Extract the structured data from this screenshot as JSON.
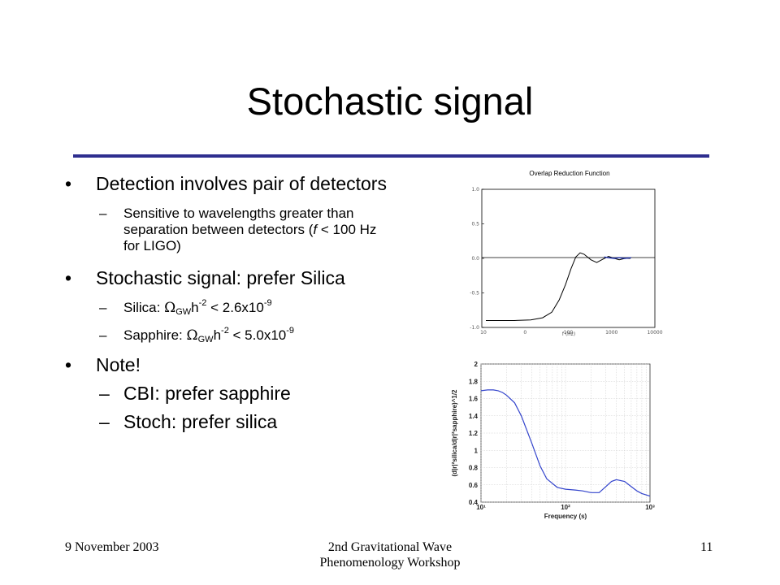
{
  "slide": {
    "title": "Stochastic signal",
    "footer_left": "9 November 2003",
    "footer_center_line1": "2nd Gravitational Wave",
    "footer_center_line2": "Phenomenology Workshop",
    "page_number": "11",
    "bullet_mark": "•",
    "dash_mark": "–"
  },
  "bullets": {
    "b1_text": "Detection involves pair of detectors",
    "b1_sub1_pre": "Sensitive to wavelengths greater than separation between detectors (",
    "b1_sub1_f": "f",
    "b1_sub1_post": " < 100 Hz for LIGO)",
    "b2_text": "Stochastic signal: prefer Silica",
    "b2_sub1_label": "Silica: ",
    "b2_sub1_limit": " < 2.6x10",
    "b2_sub1_exp": "-9",
    "b2_sub2_label": "Sapphire: ",
    "b2_sub2_limit": " < 5.0x10",
    "b2_sub2_exp": "-9",
    "omega": "Ω",
    "gw_sub": "GW",
    "h": "h",
    "h_exp": "-2",
    "b3_text": "Note!",
    "b3_sub1": "CBI: prefer sapphire",
    "b3_sub2": "Stoch: prefer silica"
  },
  "chart_data": [
    {
      "type": "line",
      "title": "Overlap Reduction Function",
      "xlabel": "f (Hz)",
      "ylabel": "",
      "x_scale": "log",
      "x_ticks": [
        "10",
        "0",
        "100",
        "1000",
        "10000"
      ],
      "y_ticks": [
        "1.0",
        "0.5",
        "0.0",
        "-0.5",
        "-1.0"
      ],
      "ylim": [
        -1.0,
        1.0
      ],
      "grid": false,
      "series": [
        {
          "color": "#000000",
          "x": [
            10,
            20,
            30,
            40,
            50,
            60,
            70,
            80,
            90,
            100,
            110,
            130,
            150,
            170,
            200,
            230,
            260,
            300,
            400,
            500
          ],
          "y": [
            -0.9,
            -0.9,
            -0.89,
            -0.86,
            -0.78,
            -0.6,
            -0.38,
            -0.15,
            0.02,
            0.08,
            0.06,
            -0.02,
            -0.06,
            -0.02,
            0.03,
            0.0,
            -0.02,
            0.0,
            0.0,
            0.0
          ]
        },
        {
          "color": "#2233aa",
          "x": [
            180,
            200,
            230,
            260,
            300,
            350,
            400,
            450,
            500
          ],
          "y": [
            0.02,
            0.01,
            0.0,
            0.01,
            0.0,
            0.01,
            0.0,
            0.0,
            0.0
          ]
        }
      ]
    },
    {
      "type": "line",
      "title": "",
      "xlabel": "Frequency (s)",
      "ylabel": "(d|r|²silica/d|r|²sapphire)^1/2",
      "x_scale": "log",
      "xlim": [
        10,
        1000
      ],
      "ylim": [
        0.4,
        2
      ],
      "x_ticks": [
        "10¹",
        "10²",
        "10³"
      ],
      "y_ticks": [
        "2",
        "1.8",
        "1.6",
        "1.4",
        "1.2",
        "1",
        "0.8",
        "0.6",
        "0.4"
      ],
      "grid": true,
      "series": [
        {
          "color": "#3344cc",
          "x": [
            10,
            12,
            14,
            16,
            18,
            20,
            25,
            30,
            40,
            50,
            60,
            80,
            100,
            130,
            160,
            200,
            250,
            300,
            350,
            400,
            500,
            600,
            700,
            800,
            1000
          ],
          "y": [
            1.69,
            1.7,
            1.7,
            1.69,
            1.67,
            1.64,
            1.55,
            1.4,
            1.08,
            0.82,
            0.67,
            0.57,
            0.55,
            0.54,
            0.53,
            0.51,
            0.51,
            0.58,
            0.64,
            0.66,
            0.64,
            0.58,
            0.53,
            0.5,
            0.47
          ]
        }
      ]
    }
  ]
}
